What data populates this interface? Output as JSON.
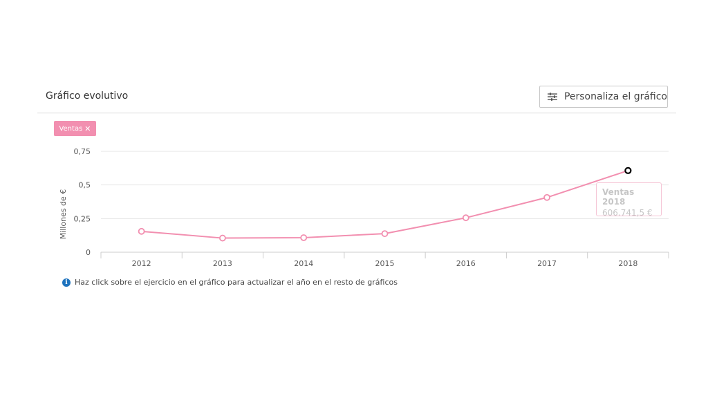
{
  "panel": {
    "title": "Gráfico evolutivo",
    "customize_label": "Personaliza el gráfico",
    "hint": "Haz click sobre el ejercicio en el gráfico para actualizar el año en el resto de gráficos"
  },
  "series_tag": {
    "label": "Ventas",
    "close": "✕"
  },
  "tooltip": {
    "title": "Ventas 2018",
    "value": "606.741,5 €"
  },
  "colors": {
    "series": "#f28fb0",
    "grid": "#e6e6e6",
    "axis": "#cccccc",
    "highlight": "#000000"
  },
  "chart_data": {
    "type": "line",
    "title": "Gráfico evolutivo",
    "xlabel": "",
    "ylabel": "Millones de €",
    "categories": [
      "2012",
      "2013",
      "2014",
      "2015",
      "2016",
      "2017",
      "2018"
    ],
    "series": [
      {
        "name": "Ventas",
        "values": [
          0.155,
          0.105,
          0.108,
          0.138,
          0.256,
          0.407,
          0.607
        ]
      }
    ],
    "yticks": [
      0,
      0.25,
      0.5,
      0.75
    ],
    "ytick_labels": [
      "0",
      "0,25",
      "0,5",
      "0,75"
    ],
    "ylim": [
      0,
      0.75
    ],
    "highlighted_category": "2018"
  }
}
